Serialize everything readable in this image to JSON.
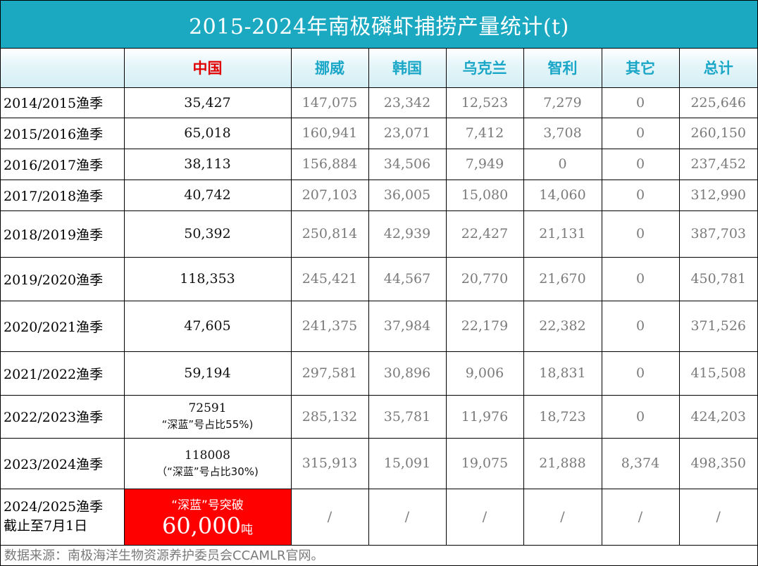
{
  "title": "2015-2024年南极磷虾捕捞产量统计(t)",
  "headers": [
    "",
    "中国",
    "挪威",
    "韩国",
    "乌克兰",
    "智利",
    "其它",
    "总计"
  ],
  "rows": [
    {
      "season": "2014/2015渔季",
      "china": "35,427",
      "china_note": "",
      "norway": "147,075",
      "korea": "23,342",
      "ukraine": "12,523",
      "chile": "7,279",
      "other": "0",
      "total": "225,646"
    },
    {
      "season": "2015/2016渔季",
      "china": "65,018",
      "china_note": "",
      "norway": "160,941",
      "korea": "23,071",
      "ukraine": "7,412",
      "chile": "3,708",
      "other": "0",
      "total": "260,150"
    },
    {
      "season": "2016/2017渔季",
      "china": "38,113",
      "china_note": "",
      "norway": "156,884",
      "korea": "34,506",
      "ukraine": "7,949",
      "chile": "0",
      "other": "0",
      "total": "237,452"
    },
    {
      "season": "2017/2018渔季",
      "china": "40,742",
      "china_note": "",
      "norway": "207,103",
      "korea": "36,005",
      "ukraine": "15,080",
      "chile": "14,060",
      "other": "0",
      "total": "312,990"
    },
    {
      "season": "2018/2019渔季",
      "china": "50,392",
      "china_note": "",
      "norway": "250,814",
      "korea": "42,939",
      "ukraine": "22,427",
      "chile": "21,131",
      "other": "0",
      "total": "387,703"
    },
    {
      "season": "2019/2020渔季",
      "china": "118,353",
      "china_note": "",
      "norway": "245,421",
      "korea": "44,567",
      "ukraine": "20,770",
      "chile": "21,670",
      "other": "0",
      "total": "450,781"
    },
    {
      "season": "2020/2021渔季",
      "china": "47,605",
      "china_note": "",
      "norway": "241,375",
      "korea": "37,984",
      "ukraine": "22,179",
      "chile": "22,382",
      "other": "0",
      "total": "371,526"
    },
    {
      "season": "2021/2022渔季",
      "china": "59,194",
      "china_note": "",
      "norway": "297,581",
      "korea": "30,896",
      "ukraine": "9,006",
      "chile": "18,831",
      "other": "0",
      "total": "415,508"
    },
    {
      "season": "2022/2023渔季",
      "china": "72591",
      "china_note": "“深蓝”号占比55%)",
      "norway": "285,132",
      "korea": "35,781",
      "ukraine": "11,976",
      "chile": "18,723",
      "other": "0",
      "total": "424,203"
    },
    {
      "season": "2023/2024渔季",
      "china": "118008",
      "china_note": "（“深蓝”号占比30%)",
      "norway": "315,913",
      "korea": "15,091",
      "ukraine": "19,075",
      "chile": "21,888",
      "other": "8,374",
      "total": "498,350"
    }
  ],
  "last_row": {
    "season_line1": "2024/2025渔季",
    "season_line2": "截止至7月1日",
    "china_top": "“深蓝”号突破",
    "china_num": "60,000",
    "china_unit": "吨",
    "slash": "/"
  },
  "source": "数据来源：南极海洋生物资源养护委员会CCAMLR官网。",
  "colors": {
    "title_bg": "#1BA9C1",
    "header_text": "#19A6C7",
    "china_header": "#E10000",
    "highlight_bg": "#FF0000",
    "grey_text": "#7a7a7a"
  }
}
